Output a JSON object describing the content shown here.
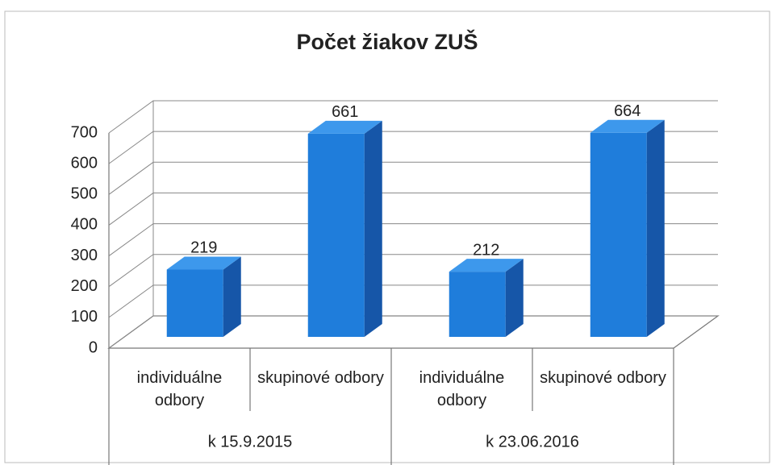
{
  "chart_data": {
    "type": "bar",
    "title": "Počet žiakov ZUŠ",
    "categories": [
      "individuálne odbory",
      "skupinové odbory",
      "individuálne odbory",
      "skupinové odbory"
    ],
    "groups": [
      "k 15.9.2015",
      "k 23.06.2016"
    ],
    "values": [
      219,
      661,
      212,
      664
    ],
    "color": "#1f7ddb",
    "ylim": [
      0,
      700
    ],
    "yticks": [
      0,
      100,
      200,
      300,
      400,
      500,
      600,
      700
    ],
    "grid": true
  }
}
